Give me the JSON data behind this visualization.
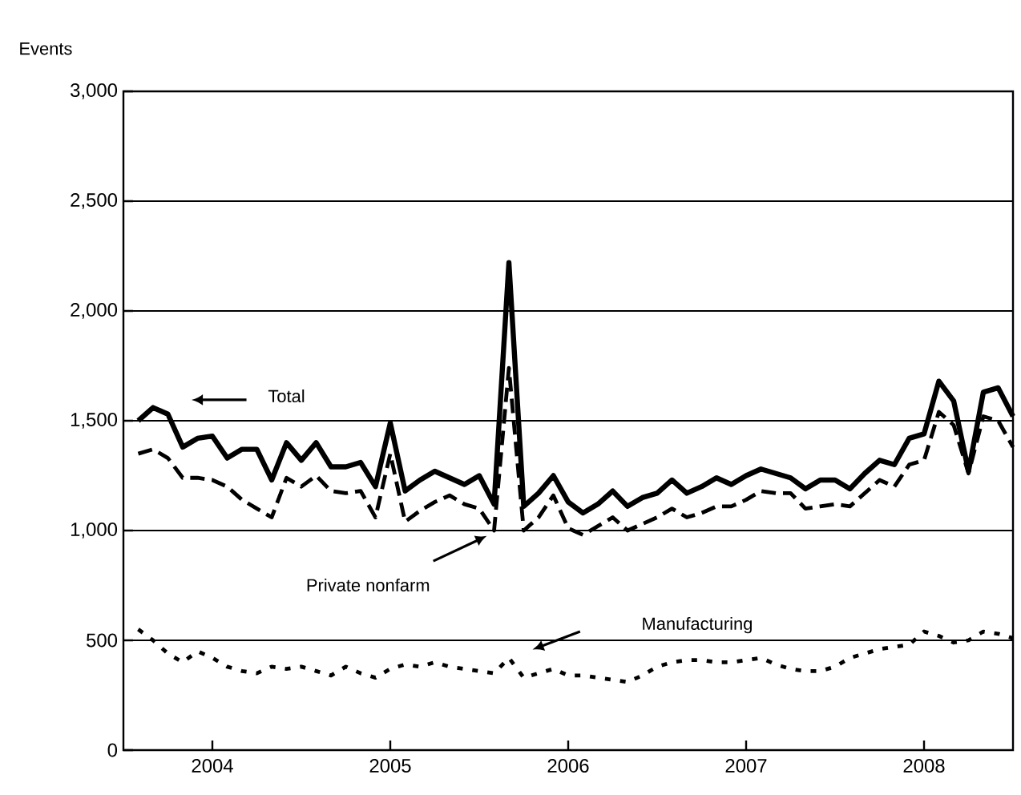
{
  "chart_data": {
    "type": "line",
    "ylabel": "Events",
    "x": [
      "2003-08",
      "2003-09",
      "2003-10",
      "2003-11",
      "2003-12",
      "2004-01",
      "2004-02",
      "2004-03",
      "2004-04",
      "2004-05",
      "2004-06",
      "2004-07",
      "2004-08",
      "2004-09",
      "2004-10",
      "2004-11",
      "2004-12",
      "2005-01",
      "2005-02",
      "2005-03",
      "2005-04",
      "2005-05",
      "2005-06",
      "2005-07",
      "2005-08",
      "2005-09",
      "2005-10",
      "2005-11",
      "2005-12",
      "2006-01",
      "2006-02",
      "2006-03",
      "2006-04",
      "2006-05",
      "2006-06",
      "2006-07",
      "2006-08",
      "2006-09",
      "2006-10",
      "2006-11",
      "2006-12",
      "2007-01",
      "2007-02",
      "2007-03",
      "2007-04",
      "2007-05",
      "2007-06",
      "2007-07",
      "2007-08",
      "2007-09",
      "2007-10",
      "2007-11",
      "2007-12",
      "2008-01",
      "2008-02",
      "2008-03",
      "2008-04",
      "2008-05",
      "2008-06",
      "2008-07"
    ],
    "series": [
      {
        "name": "Total",
        "color": "#000000",
        "line_style": "solid",
        "values": [
          1500,
          1560,
          1530,
          1380,
          1420,
          1430,
          1330,
          1370,
          1370,
          1230,
          1400,
          1320,
          1400,
          1290,
          1290,
          1310,
          1200,
          1490,
          1180,
          1230,
          1270,
          1240,
          1210,
          1250,
          1120,
          2220,
          1110,
          1170,
          1250,
          1130,
          1080,
          1120,
          1180,
          1110,
          1150,
          1170,
          1230,
          1170,
          1200,
          1240,
          1210,
          1250,
          1280,
          1260,
          1240,
          1190,
          1230,
          1230,
          1190,
          1260,
          1320,
          1300,
          1420,
          1440,
          1680,
          1590,
          1270,
          1630,
          1650,
          1520
        ]
      },
      {
        "name": "Private nonfarm",
        "color": "#000000",
        "line_style": "dashed",
        "values": [
          1350,
          1370,
          1330,
          1240,
          1240,
          1230,
          1200,
          1140,
          1100,
          1060,
          1240,
          1200,
          1250,
          1180,
          1170,
          1180,
          1060,
          1350,
          1040,
          1090,
          1130,
          1160,
          1120,
          1100,
          1000,
          1740,
          1000,
          1060,
          1160,
          1010,
          980,
          1020,
          1060,
          1000,
          1030,
          1060,
          1100,
          1060,
          1080,
          1110,
          1110,
          1140,
          1180,
          1170,
          1170,
          1100,
          1110,
          1120,
          1110,
          1170,
          1230,
          1200,
          1300,
          1320,
          1540,
          1480,
          1260,
          1520,
          1500,
          1380
        ]
      },
      {
        "name": "Manufacturing",
        "color": "#000000",
        "line_style": "dotted",
        "values": [
          550,
          500,
          440,
          400,
          450,
          420,
          380,
          360,
          350,
          380,
          370,
          380,
          360,
          340,
          380,
          350,
          330,
          370,
          390,
          380,
          400,
          380,
          370,
          360,
          350,
          420,
          330,
          350,
          370,
          340,
          340,
          330,
          320,
          310,
          340,
          380,
          400,
          410,
          410,
          400,
          400,
          410,
          420,
          390,
          370,
          360,
          360,
          380,
          420,
          440,
          460,
          470,
          480,
          540,
          520,
          490,
          500,
          540,
          530,
          510
        ]
      }
    ],
    "xlim": [
      "2003-07",
      "2008-07"
    ],
    "xticks": [
      {
        "value": "2004-01",
        "label": "2004"
      },
      {
        "value": "2005-01",
        "label": "2005"
      },
      {
        "value": "2006-01",
        "label": "2006"
      },
      {
        "value": "2007-01",
        "label": "2007"
      },
      {
        "value": "2008-01",
        "label": "2008"
      }
    ],
    "ylim": [
      0,
      3000
    ],
    "yticks": [
      0,
      500,
      {
        "value": 1000,
        "label": "1,000"
      },
      {
        "value": 1500,
        "label": "1,500"
      },
      {
        "value": 2000,
        "label": "2,000"
      },
      {
        "value": 2500,
        "label": "2,500"
      },
      {
        "value": 3000,
        "label": "3,000"
      }
    ],
    "grid": "y"
  }
}
